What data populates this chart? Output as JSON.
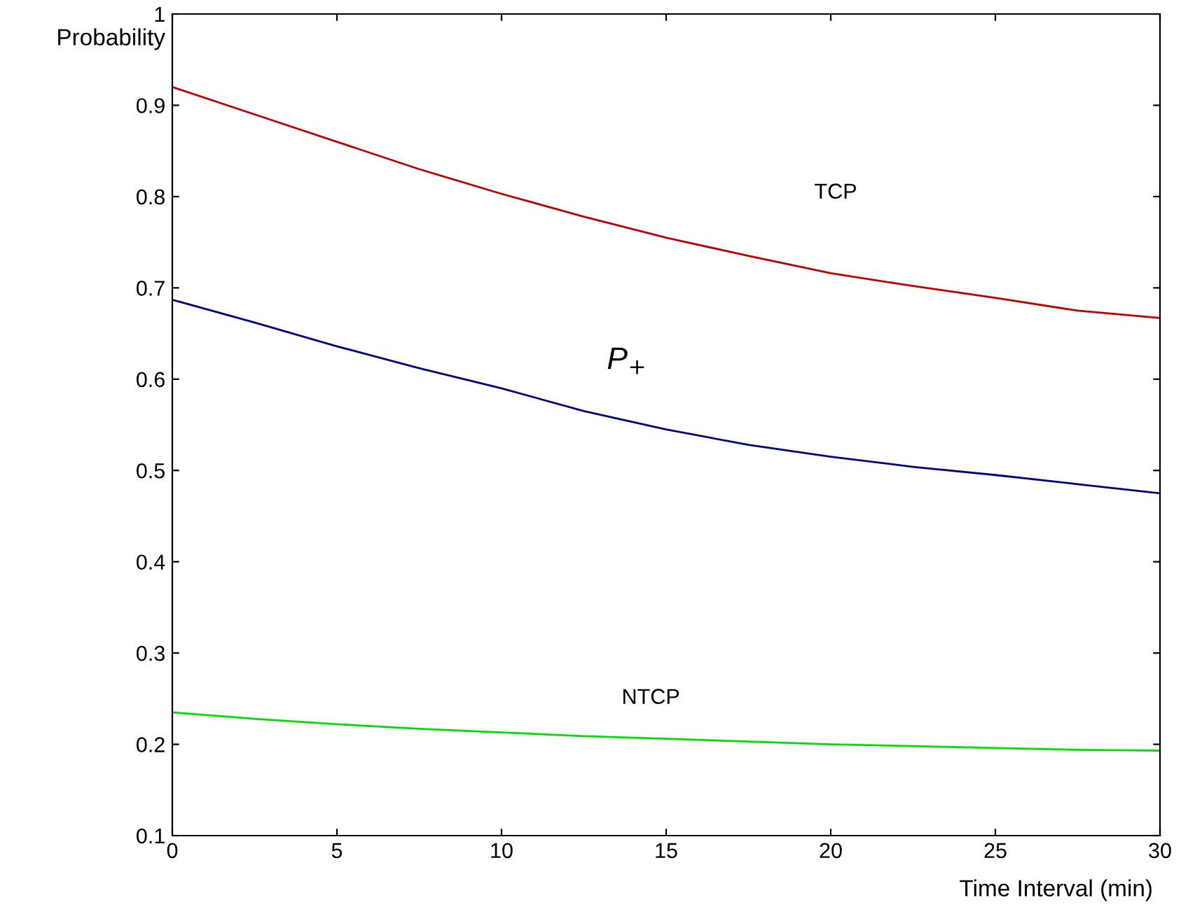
{
  "chart_data": {
    "type": "line",
    "xlabel": "Time Interval (min)",
    "ylabel": "Probability",
    "x": [
      0,
      2.5,
      5,
      7.5,
      10,
      12.5,
      15,
      17.5,
      20,
      22.5,
      25,
      27.5,
      30
    ],
    "series": [
      {
        "color": "#c00000",
        "values": [
          0.92,
          0.89,
          0.86,
          0.83,
          0.803,
          0.778,
          0.755,
          0.735,
          0.716,
          0.702,
          0.689,
          0.675,
          0.667
        ]
      },
      {
        "color": "#000080",
        "values": [
          0.687,
          0.662,
          0.636,
          0.612,
          0.59,
          0.565,
          0.545,
          0.528,
          0.515,
          0.504,
          0.495,
          0.485,
          0.475
        ]
      },
      {
        "color": "#00dd00",
        "values": [
          0.235,
          0.228,
          0.222,
          0.217,
          0.213,
          0.209,
          0.206,
          0.203,
          0.2,
          0.198,
          0.196,
          0.194,
          0.193
        ]
      }
    ],
    "annotations": [
      "TCP",
      "P$_{+}$",
      "NTCP"
    ],
    "xlim": [
      0,
      30
    ],
    "xticks": [
      0,
      5,
      10,
      15,
      20,
      25,
      30
    ],
    "ylim": [
      0.1,
      1
    ],
    "yticks": [
      0.1,
      0.2,
      0.3,
      0.4,
      0.5,
      0.6,
      0.7,
      0.8,
      0.9,
      1
    ],
    "grid": false,
    "legend": false,
    "marker": "none",
    "line_style": "solid"
  }
}
